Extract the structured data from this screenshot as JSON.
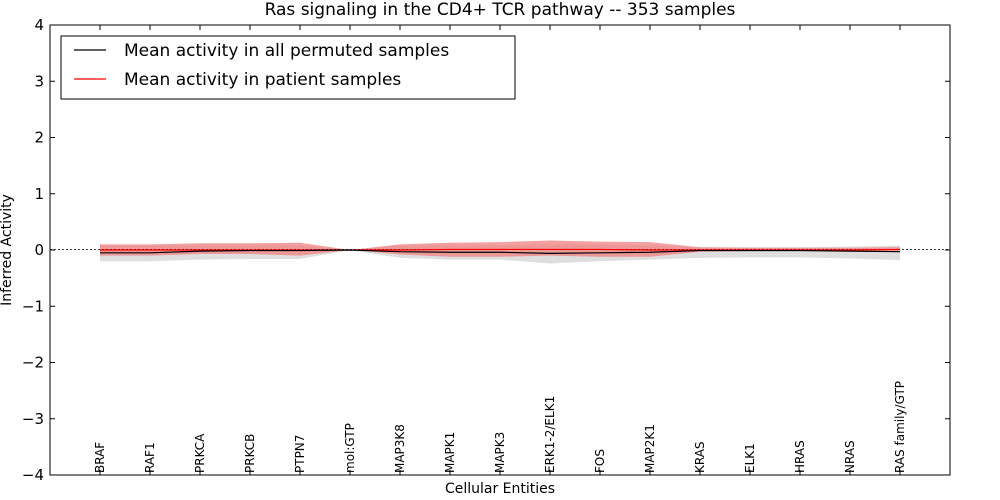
{
  "chart_data": {
    "type": "line",
    "title": "Ras signaling in the CD4+ TCR pathway -- 353 samples",
    "xlabel": "Cellular Entities",
    "ylabel": "Inferred Activity",
    "ylim": [
      -4,
      4
    ],
    "y_ticks": [
      "−4",
      "−3",
      "−2",
      "−1",
      "0",
      "1",
      "2",
      "3",
      "4"
    ],
    "y_tick_values": [
      -4,
      -3,
      -2,
      -1,
      0,
      1,
      2,
      3,
      4
    ],
    "categories": [
      "BRAF",
      "RAF1",
      "PRKCA",
      "PRKCB",
      "PTPN7",
      "mol:GTP",
      "MAP3K8",
      "MAPK1",
      "MAPK3",
      "ERK1-2/ELK1",
      "FOS",
      "MAP2K1",
      "KRAS",
      "ELK1",
      "HRAS",
      "NRAS",
      "RAS family/GTP"
    ],
    "legend_position": "top-left",
    "colors": {
      "permuted_line": "#000000",
      "patient_line": "#ff0000",
      "permuted_band": "#c8c8c8",
      "patient_band": "#f08080"
    },
    "series": [
      {
        "name": "Mean activity in all permuted samples",
        "values": [
          -0.05,
          -0.05,
          -0.02,
          -0.01,
          -0.01,
          0.0,
          -0.03,
          -0.04,
          -0.04,
          -0.06,
          -0.05,
          -0.04,
          -0.01,
          -0.01,
          -0.01,
          -0.02,
          -0.03
        ],
        "lower": [
          -0.2,
          -0.2,
          -0.17,
          -0.16,
          -0.16,
          0.0,
          -0.14,
          -0.17,
          -0.17,
          -0.24,
          -0.2,
          -0.17,
          -0.14,
          -0.13,
          -0.13,
          -0.15,
          -0.18
        ],
        "upper": [
          0.08,
          0.08,
          0.08,
          0.08,
          0.08,
          0.0,
          0.08,
          0.08,
          0.08,
          0.1,
          0.1,
          0.08,
          0.05,
          0.05,
          0.05,
          0.06,
          0.08
        ]
      },
      {
        "name": "Mean activity in patient samples",
        "values": [
          0.0,
          0.0,
          0.0,
          0.0,
          0.0,
          0.0,
          0.0,
          0.01,
          0.01,
          0.01,
          0.01,
          0.0,
          0.0,
          0.0,
          0.0,
          0.0,
          0.01
        ],
        "lower": [
          -0.1,
          -0.1,
          -0.07,
          -0.07,
          -0.1,
          0.0,
          -0.08,
          -0.12,
          -0.12,
          -0.1,
          -0.12,
          -0.12,
          -0.03,
          -0.02,
          -0.02,
          -0.02,
          -0.02
        ],
        "upper": [
          0.1,
          0.1,
          0.12,
          0.12,
          0.13,
          0.0,
          0.1,
          0.13,
          0.14,
          0.17,
          0.15,
          0.14,
          0.05,
          0.04,
          0.04,
          0.04,
          0.05
        ]
      }
    ]
  }
}
